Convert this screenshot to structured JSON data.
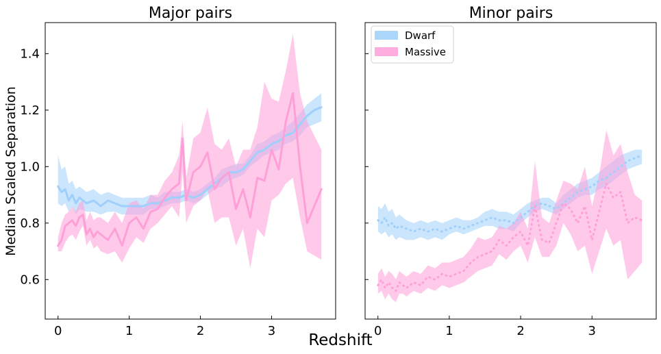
{
  "figure": {
    "xlabel": "Redshift",
    "ylabel": "Median Scaled Separation"
  },
  "colors": {
    "dwarf": "#9fcffa",
    "massive": "#ff9fd8"
  },
  "legend": {
    "location": "upper-left",
    "panel": "Minor pairs",
    "entries": [
      "Dwarf",
      "Massive"
    ]
  },
  "chart_data": [
    {
      "type": "line",
      "title": "Major pairs",
      "xlabel": "",
      "ylabel": "Median Scaled Separation",
      "xlim": [
        -0.18,
        3.9
      ],
      "ylim": [
        0.46,
        1.51
      ],
      "xticks": [
        0,
        1,
        2,
        3
      ],
      "yticks": [
        0.6,
        0.8,
        1.0,
        1.2,
        1.4
      ],
      "xtick_labels": [
        "0",
        "1",
        "2",
        "3"
      ],
      "ytick_labels": [
        "0.6",
        "0.8",
        "1.0",
        "1.2",
        "1.4"
      ],
      "grid": false,
      "series": [
        {
          "name": "Dwarf",
          "color": "#9fcffa",
          "linestyle": "solid",
          "x": [
            0,
            0.05,
            0.1,
            0.15,
            0.2,
            0.25,
            0.3,
            0.4,
            0.5,
            0.6,
            0.7,
            0.8,
            0.9,
            1.0,
            1.1,
            1.2,
            1.3,
            1.4,
            1.5,
            1.6,
            1.7,
            1.8,
            1.9,
            2.0,
            2.1,
            2.2,
            2.3,
            2.4,
            2.5,
            2.6,
            2.7,
            2.8,
            2.9,
            3.0,
            3.1,
            3.2,
            3.3,
            3.4,
            3.5,
            3.6,
            3.7
          ],
          "y": [
            0.93,
            0.91,
            0.92,
            0.88,
            0.9,
            0.87,
            0.89,
            0.87,
            0.88,
            0.86,
            0.88,
            0.87,
            0.86,
            0.86,
            0.86,
            0.86,
            0.87,
            0.87,
            0.88,
            0.89,
            0.89,
            0.9,
            0.89,
            0.9,
            0.92,
            0.94,
            0.96,
            0.98,
            0.98,
            0.99,
            1.02,
            1.05,
            1.06,
            1.08,
            1.09,
            1.11,
            1.12,
            1.15,
            1.18,
            1.2,
            1.21
          ],
          "lower": [
            0.87,
            0.86,
            0.87,
            0.84,
            0.86,
            0.83,
            0.85,
            0.84,
            0.84,
            0.83,
            0.84,
            0.84,
            0.83,
            0.83,
            0.83,
            0.83,
            0.85,
            0.85,
            0.86,
            0.87,
            0.87,
            0.88,
            0.87,
            0.88,
            0.9,
            0.92,
            0.93,
            0.95,
            0.96,
            0.97,
            1.0,
            1.02,
            1.04,
            1.05,
            1.06,
            1.08,
            1.09,
            1.11,
            1.14,
            1.15,
            1.16
          ],
          "upper": [
            1.04,
            0.99,
            1.0,
            0.94,
            0.95,
            0.92,
            0.93,
            0.91,
            0.92,
            0.9,
            0.91,
            0.9,
            0.89,
            0.89,
            0.89,
            0.89,
            0.9,
            0.89,
            0.91,
            0.91,
            0.91,
            0.92,
            0.91,
            0.92,
            0.94,
            0.96,
            0.99,
            1.0,
            1.01,
            1.01,
            1.04,
            1.08,
            1.09,
            1.11,
            1.12,
            1.14,
            1.16,
            1.19,
            1.22,
            1.24,
            1.26
          ]
        },
        {
          "name": "Massive",
          "color": "#ff9fd8",
          "linestyle": "solid",
          "x": [
            0,
            0.05,
            0.1,
            0.15,
            0.2,
            0.25,
            0.3,
            0.35,
            0.4,
            0.45,
            0.5,
            0.55,
            0.6,
            0.7,
            0.8,
            0.9,
            1.0,
            1.1,
            1.2,
            1.3,
            1.4,
            1.5,
            1.6,
            1.7,
            1.75,
            1.8,
            1.9,
            2.0,
            2.1,
            2.2,
            2.3,
            2.4,
            2.5,
            2.6,
            2.7,
            2.8,
            2.9,
            3.0,
            3.1,
            3.2,
            3.3,
            3.4,
            3.5,
            3.7
          ],
          "y": [
            0.72,
            0.74,
            0.79,
            0.8,
            0.81,
            0.79,
            0.82,
            0.83,
            0.76,
            0.78,
            0.75,
            0.77,
            0.76,
            0.74,
            0.78,
            0.72,
            0.8,
            0.82,
            0.78,
            0.84,
            0.85,
            0.89,
            0.92,
            0.94,
            1.1,
            0.88,
            0.98,
            1.0,
            1.05,
            0.92,
            0.96,
            0.98,
            0.85,
            0.92,
            0.82,
            0.96,
            0.95,
            1.06,
            0.99,
            1.16,
            1.26,
            1.0,
            0.8,
            0.92
          ],
          "lower": [
            0.7,
            0.7,
            0.73,
            0.75,
            0.76,
            0.74,
            0.77,
            0.79,
            0.72,
            0.74,
            0.71,
            0.72,
            0.7,
            0.69,
            0.7,
            0.66,
            0.71,
            0.75,
            0.73,
            0.78,
            0.8,
            0.83,
            0.86,
            0.82,
            0.98,
            0.8,
            0.86,
            0.88,
            0.92,
            0.8,
            0.82,
            0.82,
            0.72,
            0.78,
            0.64,
            0.78,
            0.75,
            0.88,
            0.9,
            0.94,
            0.96,
            0.82,
            0.7,
            0.67
          ],
          "upper": [
            0.75,
            0.8,
            0.83,
            0.84,
            0.86,
            0.84,
            0.87,
            0.88,
            0.81,
            0.84,
            0.81,
            0.82,
            0.82,
            0.8,
            0.84,
            0.8,
            0.87,
            0.88,
            0.85,
            0.9,
            0.9,
            0.95,
            0.98,
            1.04,
            1.16,
            0.96,
            1.1,
            1.12,
            1.21,
            1.08,
            1.06,
            1.1,
            1.0,
            1.06,
            1.06,
            1.14,
            1.3,
            1.24,
            1.23,
            1.34,
            1.47,
            1.26,
            1.16,
            1.06
          ]
        }
      ]
    },
    {
      "type": "line",
      "title": "Minor pairs",
      "xlabel": "",
      "ylabel": "",
      "xlim": [
        -0.18,
        3.9
      ],
      "ylim": [
        0.46,
        1.51
      ],
      "xticks": [
        0,
        1,
        2,
        3
      ],
      "yticks": [
        0.6,
        0.8,
        1.0,
        1.2,
        1.4
      ],
      "xtick_labels": [
        "0",
        "1",
        "2",
        "3"
      ],
      "ytick_labels": [],
      "grid": false,
      "series": [
        {
          "name": "Dwarf",
          "color": "#9fcffa",
          "linestyle": "dotted",
          "x": [
            0,
            0.05,
            0.1,
            0.15,
            0.2,
            0.25,
            0.3,
            0.4,
            0.5,
            0.6,
            0.7,
            0.8,
            0.9,
            1.0,
            1.1,
            1.2,
            1.3,
            1.4,
            1.5,
            1.6,
            1.7,
            1.8,
            1.9,
            2.0,
            2.1,
            2.2,
            2.3,
            2.4,
            2.5,
            2.6,
            2.7,
            2.8,
            2.9,
            3.0,
            3.1,
            3.2,
            3.3,
            3.4,
            3.5,
            3.6,
            3.7
          ],
          "y": [
            0.81,
            0.8,
            0.82,
            0.79,
            0.8,
            0.78,
            0.79,
            0.78,
            0.77,
            0.78,
            0.77,
            0.78,
            0.77,
            0.78,
            0.79,
            0.78,
            0.79,
            0.8,
            0.81,
            0.82,
            0.81,
            0.81,
            0.8,
            0.82,
            0.84,
            0.86,
            0.87,
            0.86,
            0.85,
            0.87,
            0.89,
            0.91,
            0.92,
            0.93,
            0.95,
            0.96,
            0.98,
            1.0,
            1.02,
            1.03,
            1.04
          ],
          "lower": [
            0.77,
            0.76,
            0.77,
            0.75,
            0.76,
            0.74,
            0.75,
            0.74,
            0.74,
            0.75,
            0.74,
            0.75,
            0.74,
            0.76,
            0.77,
            0.76,
            0.77,
            0.78,
            0.79,
            0.79,
            0.78,
            0.78,
            0.77,
            0.8,
            0.82,
            0.84,
            0.85,
            0.84,
            0.83,
            0.85,
            0.87,
            0.89,
            0.9,
            0.9,
            0.92,
            0.93,
            0.95,
            0.97,
            0.99,
            1.0,
            1.01
          ],
          "upper": [
            0.86,
            0.85,
            0.87,
            0.84,
            0.85,
            0.82,
            0.83,
            0.81,
            0.8,
            0.81,
            0.8,
            0.81,
            0.8,
            0.81,
            0.82,
            0.81,
            0.81,
            0.82,
            0.84,
            0.85,
            0.84,
            0.84,
            0.83,
            0.85,
            0.87,
            0.88,
            0.89,
            0.89,
            0.87,
            0.9,
            0.92,
            0.94,
            0.95,
            0.96,
            0.98,
            1.0,
            1.02,
            1.04,
            1.05,
            1.06,
            1.06
          ]
        },
        {
          "name": "Massive",
          "color": "#ff9fd8",
          "linestyle": "dotted",
          "x": [
            0,
            0.05,
            0.1,
            0.15,
            0.2,
            0.25,
            0.3,
            0.35,
            0.4,
            0.5,
            0.6,
            0.7,
            0.8,
            0.9,
            1.0,
            1.1,
            1.2,
            1.3,
            1.4,
            1.5,
            1.6,
            1.7,
            1.8,
            1.9,
            2.0,
            2.1,
            2.2,
            2.3,
            2.4,
            2.5,
            2.6,
            2.7,
            2.8,
            2.9,
            3.0,
            3.1,
            3.2,
            3.3,
            3.4,
            3.5,
            3.6,
            3.7
          ],
          "y": [
            0.58,
            0.6,
            0.57,
            0.59,
            0.57,
            0.56,
            0.59,
            0.58,
            0.57,
            0.59,
            0.58,
            0.61,
            0.6,
            0.62,
            0.61,
            0.62,
            0.63,
            0.66,
            0.68,
            0.69,
            0.7,
            0.74,
            0.72,
            0.75,
            0.77,
            0.72,
            0.86,
            0.74,
            0.73,
            0.8,
            0.87,
            0.85,
            0.8,
            0.86,
            0.74,
            0.84,
            0.94,
            0.89,
            0.91,
            0.8,
            0.82,
            0.81
          ],
          "lower": [
            0.55,
            0.56,
            0.53,
            0.55,
            0.53,
            0.52,
            0.55,
            0.55,
            0.54,
            0.56,
            0.55,
            0.57,
            0.56,
            0.58,
            0.57,
            0.58,
            0.59,
            0.61,
            0.63,
            0.64,
            0.65,
            0.69,
            0.67,
            0.7,
            0.72,
            0.66,
            0.75,
            0.68,
            0.68,
            0.72,
            0.8,
            0.76,
            0.7,
            0.72,
            0.62,
            0.7,
            0.78,
            0.72,
            0.74,
            0.6,
            0.63,
            0.66
          ],
          "upper": [
            0.62,
            0.64,
            0.61,
            0.63,
            0.62,
            0.6,
            0.63,
            0.62,
            0.61,
            0.63,
            0.62,
            0.65,
            0.64,
            0.66,
            0.66,
            0.67,
            0.68,
            0.71,
            0.75,
            0.74,
            0.75,
            0.79,
            0.78,
            0.8,
            0.84,
            0.78,
            1.02,
            0.82,
            0.8,
            0.88,
            0.95,
            0.94,
            0.92,
            1.0,
            0.86,
            0.97,
            1.13,
            1.04,
            1.08,
            0.98,
            0.9,
            0.88
          ]
        }
      ]
    }
  ]
}
